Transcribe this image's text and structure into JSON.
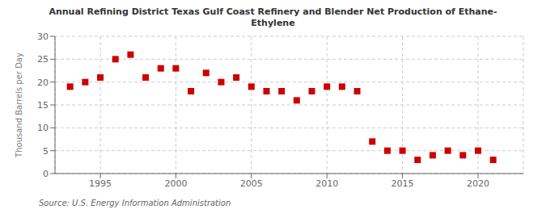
{
  "chart_data": {
    "type": "scatter",
    "title": "Annual Refining District Texas Gulf Coast Refinery and Blender Net Production of Ethane-\nEthylene",
    "ylabel": "Thousand Barrels per Day",
    "source": "Source: U.S. Energy Information Administration",
    "x": [
      1993,
      1994,
      1995,
      1996,
      1997,
      1998,
      1999,
      2000,
      2001,
      2002,
      2003,
      2004,
      2005,
      2006,
      2007,
      2008,
      2009,
      2010,
      2011,
      2012,
      2013,
      2014,
      2015,
      2016,
      2017,
      2018,
      2019,
      2020,
      2021
    ],
    "values": [
      19.0,
      20.0,
      21.0,
      25.0,
      26.0,
      21.0,
      23.0,
      23.0,
      18.0,
      22.0,
      20.0,
      21.0,
      19.0,
      18.0,
      18.0,
      16.0,
      18.0,
      19.0,
      19.0,
      18.0,
      7.0,
      5.0,
      5.0,
      3.0,
      4.0,
      5.0,
      4.0,
      5.0,
      3.0
    ],
    "color": "#cc0000",
    "marker": "square",
    "xlim": [
      1992,
      2023
    ],
    "ylim": [
      0,
      30
    ],
    "xticks": [
      1995,
      2000,
      2005,
      2010,
      2015,
      2020
    ],
    "yticks": [
      0,
      5,
      10,
      15,
      20,
      25,
      30
    ],
    "grid": true
  }
}
